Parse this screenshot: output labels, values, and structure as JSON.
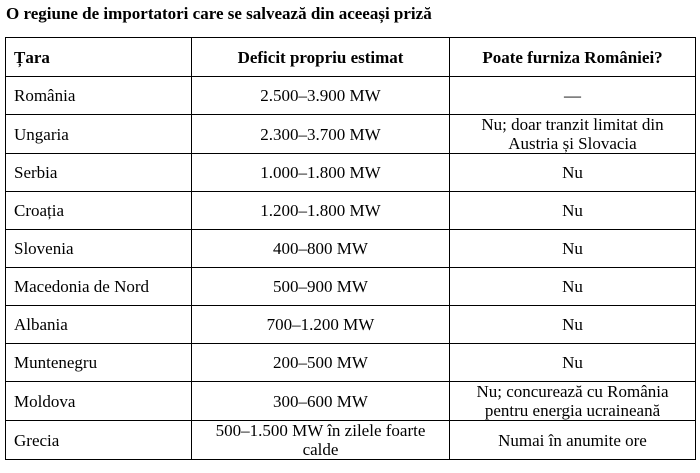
{
  "title": "O regiune de importatori care se salvează din aceeași priză",
  "table": {
    "headers": [
      "Țara",
      "Deficit propriu estimat",
      "Poate furniza României?"
    ],
    "rows": [
      [
        "România",
        "2.500–3.900 MW",
        "—"
      ],
      [
        "Ungaria",
        "2.300–3.700 MW",
        "Nu; doar tranzit limitat din Austria și Slovacia"
      ],
      [
        "Serbia",
        "1.000–1.800 MW",
        "Nu"
      ],
      [
        "Croația",
        "1.200–1.800 MW",
        "Nu"
      ],
      [
        "Slovenia",
        "400–800 MW",
        "Nu"
      ],
      [
        "Macedonia de Nord",
        "500–900 MW",
        "Nu"
      ],
      [
        "Albania",
        "700–1.200 MW",
        "Nu"
      ],
      [
        "Muntenegru",
        "200–500 MW",
        "Nu"
      ],
      [
        "Moldova",
        "300–600 MW",
        "Nu; concurează cu România pentru energia ucraineană"
      ],
      [
        "Grecia",
        "500–1.500 MW în zilele foarte calde",
        "Numai în anumite ore"
      ]
    ]
  }
}
